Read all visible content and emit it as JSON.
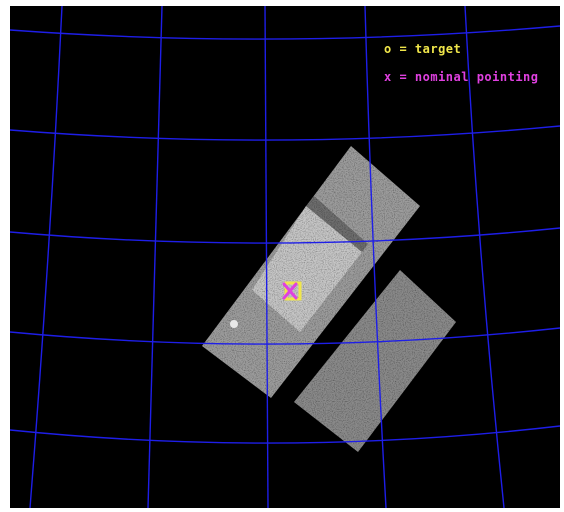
{
  "legend": {
    "target_label": "o = target",
    "pointing_label": "x = nominal pointing"
  },
  "colors": {
    "background": "#000000",
    "grid": "#1e1ee8",
    "target": "#f0e64a",
    "pointing": "#e040e0",
    "detector": "#a8a8a8",
    "detector_bright": "#cfcfcf"
  }
}
